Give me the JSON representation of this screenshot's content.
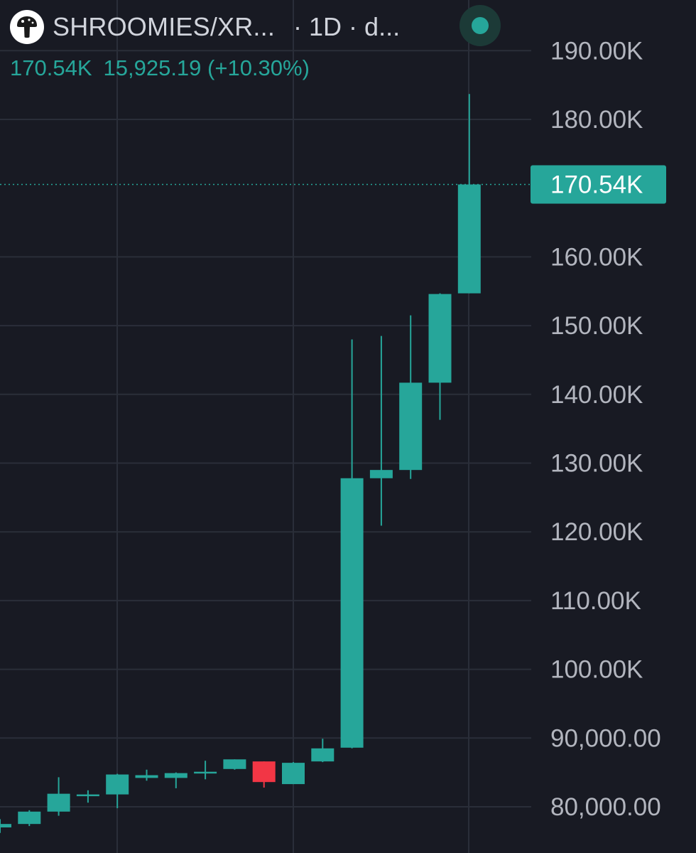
{
  "header": {
    "symbol": "SHROOMIES/XR...",
    "interval": "· 1D · d...",
    "logo_icon": "mushroom-icon"
  },
  "legend": {
    "last_price": "170.54K",
    "change": "15,925.19 (+10.30%)"
  },
  "colors": {
    "background": "#181a23",
    "up": "#26a69a",
    "down": "#f23645",
    "grid": "#2a2e39",
    "axis_text": "#b2b5be"
  },
  "chart_data": {
    "type": "candlestick",
    "y_axis_ticks": [
      {
        "value": 190000,
        "label": "190.00K"
      },
      {
        "value": 180000,
        "label": "180.00K"
      },
      {
        "value": 160000,
        "label": "160.00K"
      },
      {
        "value": 150000,
        "label": "150.00K"
      },
      {
        "value": 140000,
        "label": "140.00K"
      },
      {
        "value": 130000,
        "label": "130.00K"
      },
      {
        "value": 120000,
        "label": "120.00K"
      },
      {
        "value": 110000,
        "label": "110.00K"
      },
      {
        "value": 100000,
        "label": "100.00K"
      },
      {
        "value": 90000,
        "label": "90,000.00"
      },
      {
        "value": 80000,
        "label": "80,000.00"
      }
    ],
    "current_price": {
      "value": 170540,
      "label": "170.54K"
    },
    "candles": [
      {
        "open": 77000,
        "high": 78200,
        "low": 76200,
        "close": 77500
      },
      {
        "open": 77500,
        "high": 79500,
        "low": 77200,
        "close": 79300
      },
      {
        "open": 79300,
        "high": 84300,
        "low": 78700,
        "close": 81900
      },
      {
        "open": 81700,
        "high": 82400,
        "low": 80600,
        "close": 81800
      },
      {
        "open": 81800,
        "high": 84800,
        "low": 79800,
        "close": 84700
      },
      {
        "open": 84200,
        "high": 85400,
        "low": 83800,
        "close": 84600
      },
      {
        "open": 84200,
        "high": 85000,
        "low": 82700,
        "close": 84900
      },
      {
        "open": 85000,
        "high": 86700,
        "low": 84000,
        "close": 85100
      },
      {
        "open": 85500,
        "high": 86900,
        "low": 85400,
        "close": 86900
      },
      {
        "open": 86600,
        "high": 86600,
        "low": 82800,
        "close": 83600
      },
      {
        "open": 83300,
        "high": 86500,
        "low": 83300,
        "close": 86400
      },
      {
        "open": 86600,
        "high": 89900,
        "low": 86500,
        "close": 88500
      },
      {
        "open": 88600,
        "high": 148000,
        "low": 88500,
        "close": 127800
      },
      {
        "open": 127800,
        "high": 148500,
        "low": 120900,
        "close": 129000
      },
      {
        "open": 129000,
        "high": 151500,
        "low": 127700,
        "close": 141700
      },
      {
        "open": 141700,
        "high": 154700,
        "low": 136300,
        "close": 154600
      },
      {
        "open": 154700,
        "high": 183700,
        "low": 154700,
        "close": 170540
      }
    ]
  }
}
